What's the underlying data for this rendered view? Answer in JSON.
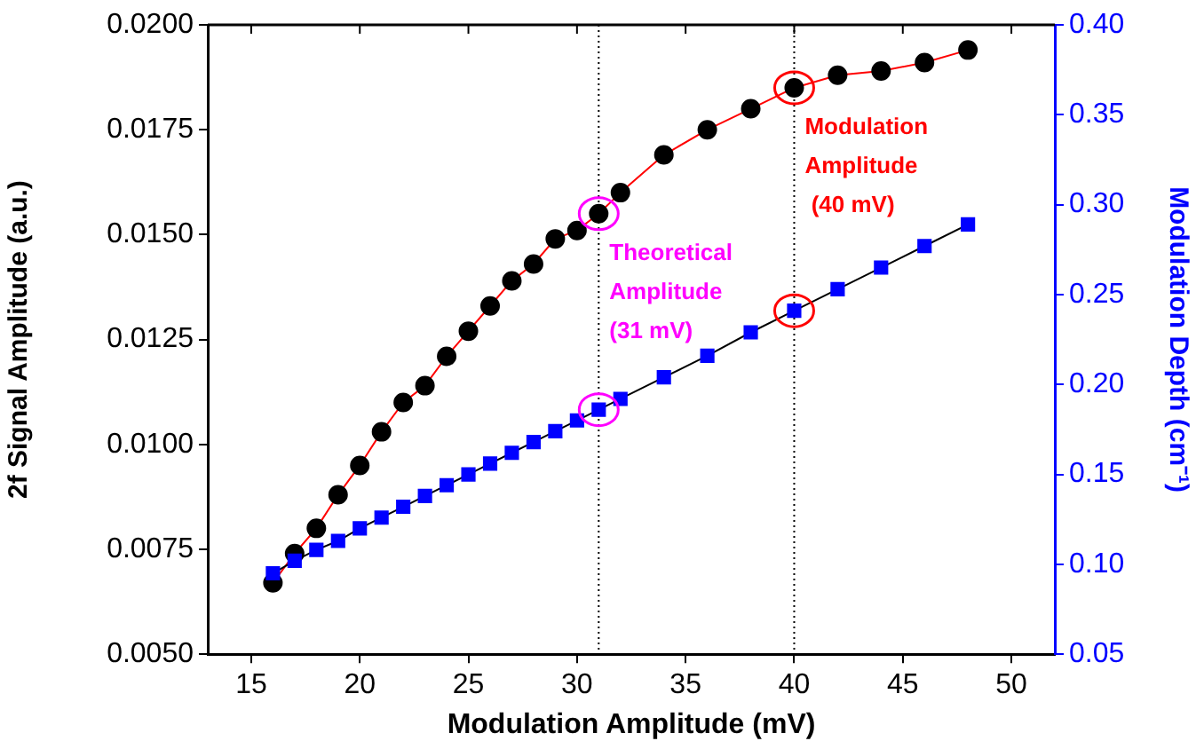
{
  "chart_data": {
    "type": "line",
    "xlabel": "Modulation Amplitude (mV)",
    "ylabel": "2f Signal Amplitude (a.u.)",
    "y2label": "Modulation Depth (cm⁻¹)",
    "xlim": [
      13,
      52
    ],
    "xticks": [
      15,
      20,
      25,
      30,
      35,
      40,
      45,
      50
    ],
    "ylim": [
      0.005,
      0.02
    ],
    "yticks": [
      {
        "value": 0.005,
        "label": "0.0050"
      },
      {
        "value": 0.0075,
        "label": "0.0075"
      },
      {
        "value": 0.01,
        "label": "0.0100"
      },
      {
        "value": 0.0125,
        "label": "0.0125"
      },
      {
        "value": 0.015,
        "label": "0.0150"
      },
      {
        "value": 0.0175,
        "label": "0.0175"
      },
      {
        "value": 0.02,
        "label": "0.0200"
      }
    ],
    "y2lim": [
      0.05,
      0.4
    ],
    "y2ticks": [
      {
        "value": 0.05,
        "label": "0.05"
      },
      {
        "value": 0.1,
        "label": "0.10"
      },
      {
        "value": 0.15,
        "label": "0.15"
      },
      {
        "value": 0.2,
        "label": "0.20"
      },
      {
        "value": 0.25,
        "label": "0.25"
      },
      {
        "value": 0.3,
        "label": "0.30"
      },
      {
        "value": 0.35,
        "label": "0.35"
      },
      {
        "value": 0.4,
        "label": "0.40"
      }
    ],
    "grid": false,
    "legend": false,
    "line_style": "solid",
    "x": [
      16,
      17,
      18,
      19,
      20,
      21,
      22,
      23,
      24,
      25,
      26,
      27,
      28,
      29,
      30,
      31,
      32,
      34,
      36,
      38,
      40,
      42,
      44,
      46,
      48
    ],
    "series": [
      {
        "color": "#000000",
        "marker": "circle",
        "values": [
          0.0067,
          0.0074,
          0.008,
          0.0088,
          0.0095,
          0.0103,
          0.011,
          0.0114,
          0.0121,
          0.0127,
          0.0133,
          0.0139,
          0.0143,
          0.0149,
          0.0151,
          0.0155,
          0.016,
          0.0169,
          0.0175,
          0.018,
          0.0185,
          0.0188,
          0.0189,
          0.0191,
          0.0194
        ]
      },
      {
        "color": "#0000ff",
        "marker": "square",
        "axis": "y2",
        "values": [
          0.095,
          0.102,
          0.108,
          0.113,
          0.12,
          0.126,
          0.132,
          0.138,
          0.144,
          0.15,
          0.156,
          0.162,
          0.168,
          0.174,
          0.18,
          0.186,
          0.192,
          0.204,
          0.216,
          0.229,
          0.241,
          0.253,
          0.265,
          0.277,
          0.289
        ]
      }
    ],
    "ref_lines": [
      {
        "axis": "x",
        "value": 31,
        "color": "#000000",
        "line_style": "dotted"
      },
      {
        "axis": "x",
        "value": 40,
        "color": "#000000",
        "line_style": "dotted"
      }
    ],
    "annotations": [
      {
        "text": "Theoretical\nAmplitude\n(31 mV)",
        "x": 31,
        "y": 0.0155
      },
      {
        "text": "Modulation\nAmplitude\n (40 mV)",
        "x": 40,
        "y": 0.0185
      }
    ]
  }
}
